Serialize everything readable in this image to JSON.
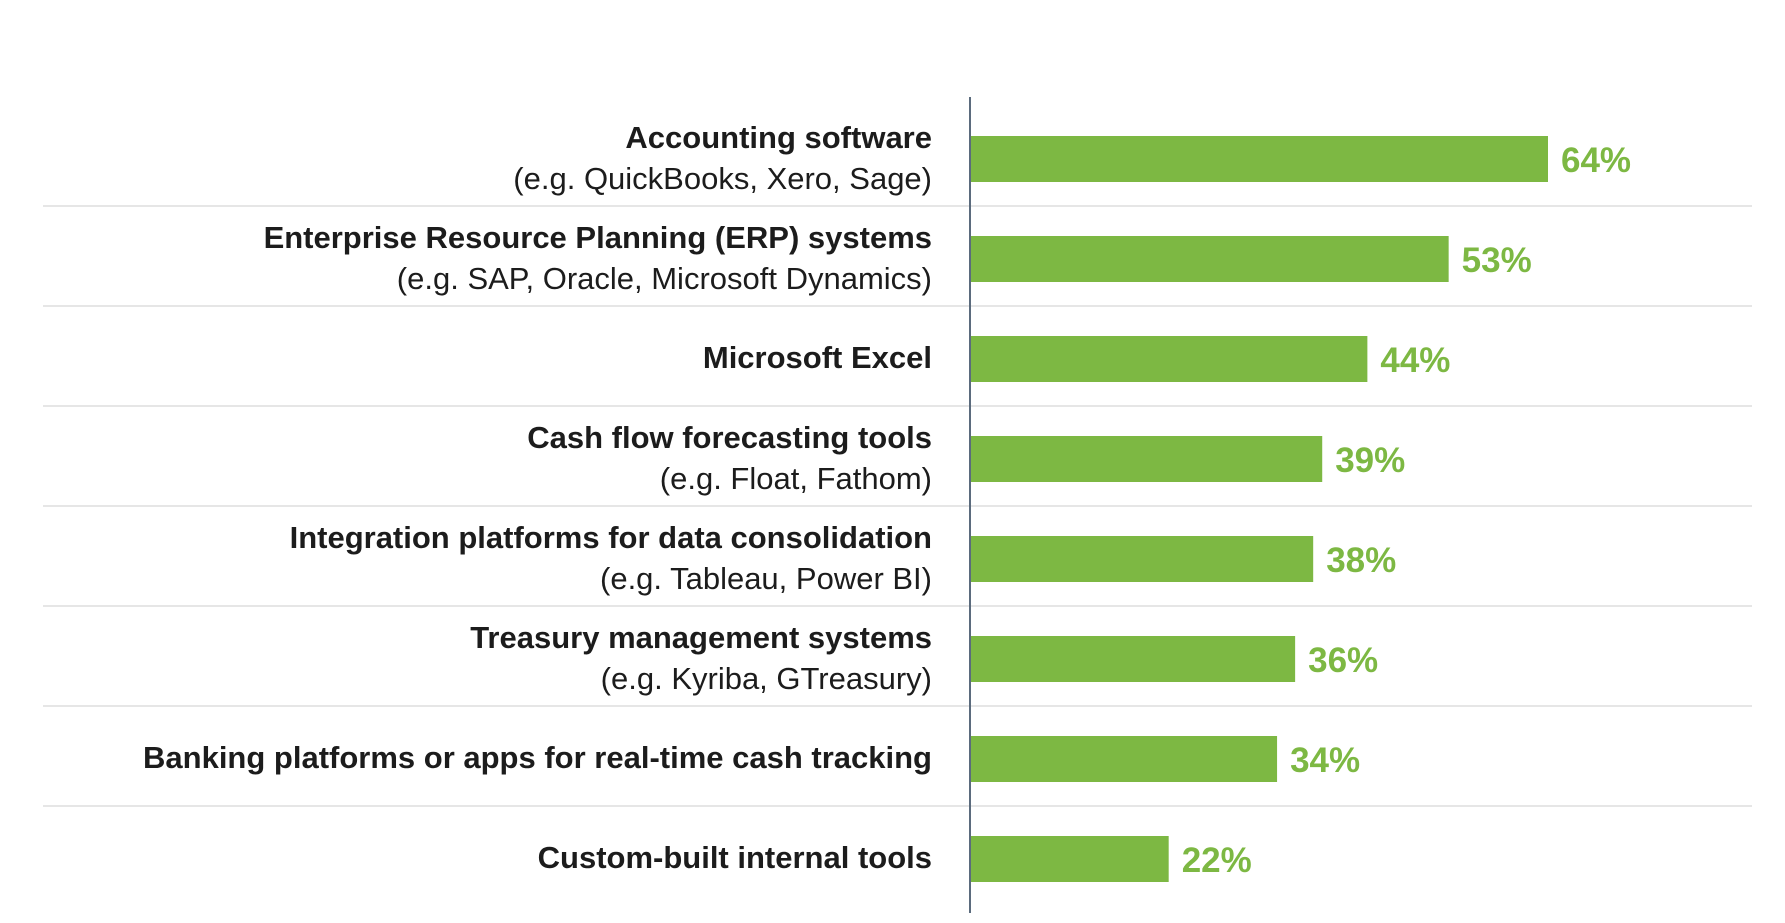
{
  "chart_data": {
    "type": "bar",
    "orientation": "horizontal",
    "title": "",
    "xlabel": "",
    "ylabel": "",
    "xlim": [
      0,
      64
    ],
    "grid": false,
    "legend": "none",
    "unit": "%",
    "categories": [
      {
        "name": "Accounting software",
        "sub": "(e.g. QuickBooks, Xero, Sage)"
      },
      {
        "name": "Enterprise Resource Planning (ERP) systems",
        "sub": "(e.g. SAP, Oracle, Microsoft Dynamics)"
      },
      {
        "name": "Microsoft Excel",
        "sub": ""
      },
      {
        "name": "Cash flow forecasting tools",
        "sub": "(e.g. Float, Fathom)"
      },
      {
        "name": "Integration platforms for data consolidation",
        "sub": "(e.g. Tableau, Power BI)"
      },
      {
        "name": "Treasury management systems",
        "sub": "(e.g. Kyriba, GTreasury)"
      },
      {
        "name": "Banking platforms or apps for real-time cash tracking",
        "sub": ""
      },
      {
        "name": "Custom-built internal tools",
        "sub": ""
      }
    ],
    "values": [
      64,
      53,
      44,
      39,
      38,
      36,
      34,
      22
    ],
    "data_labels": [
      "64%",
      "53%",
      "44%",
      "39%",
      "38%",
      "36%",
      "34%",
      "22%"
    ],
    "colors": {
      "bar": "#7db843",
      "label": "#7db843",
      "axis": "#5b6b7d",
      "separator": "#dddddd",
      "text": "#1c1c1c"
    }
  }
}
